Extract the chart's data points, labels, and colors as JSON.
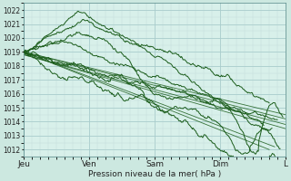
{
  "xlabel": "Pression niveau de la mer( hPa )",
  "bg_color": "#cce8e0",
  "plot_bg_color": "#d8f0ea",
  "grid_major_color": "#a8cccc",
  "grid_minor_color": "#c0dcd8",
  "line_color": "#1a5c1a",
  "ylim": [
    1011.5,
    1022.5
  ],
  "xlim": [
    0,
    96
  ],
  "yticks": [
    1012,
    1013,
    1014,
    1015,
    1016,
    1017,
    1018,
    1019,
    1020,
    1021,
    1022
  ],
  "xtick_labels": [
    "Jeu",
    "Ven",
    "Sam",
    "Dim",
    "L"
  ],
  "xtick_positions": [
    0,
    24,
    48,
    72,
    96
  ]
}
